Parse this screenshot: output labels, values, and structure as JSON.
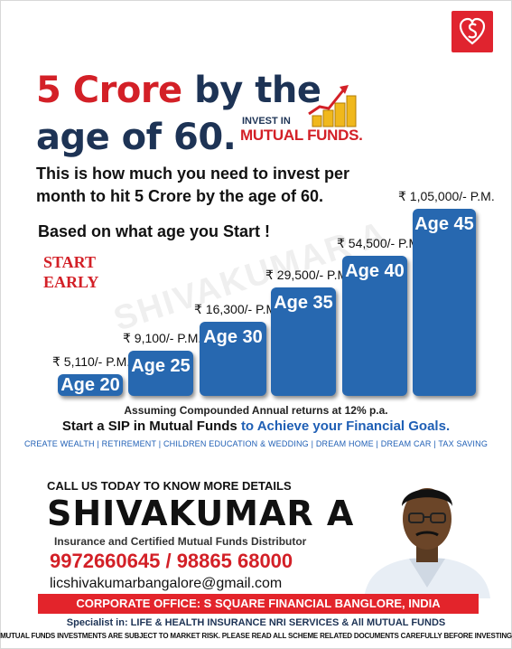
{
  "logo": {
    "icon": "hearts-s-logo-icon",
    "color": "#e0242f"
  },
  "headline": {
    "part1_red": "5 Crore",
    "part1_rest": " by the",
    "part2": "age of 60."
  },
  "invest_badge": {
    "line1": "INVEST IN",
    "line2": "MUTUAL FUNDS.",
    "icon": "coins-growth-icon"
  },
  "subtitle": {
    "line1": "This is how much you need to invest per",
    "line2": "month to hit 5 Crore by the age of 60.",
    "line3": "Based on what age you Start !"
  },
  "start_early": {
    "line1": "START",
    "line2": "EARLY"
  },
  "watermark": "SHIVAKUMAR A",
  "chart_data": {
    "type": "bar",
    "categories": [
      "Age 20",
      "Age 25",
      "Age 30",
      "Age 35",
      "Age 40",
      "Age 45"
    ],
    "values": [
      5110,
      9100,
      16300,
      29500,
      54500,
      105000
    ],
    "value_labels": [
      "₹ 5,110/- P.M.",
      "₹ 9,100/- P.M.",
      "₹ 16,300/- P.M.",
      "₹ 29,500/- P.M.",
      "₹ 54,500/- P.M.",
      "₹ 1,05,000/- P.M."
    ],
    "bar_color": "#2768b0"
  },
  "note": "Assuming Compounded  Annual returns at 12% p.a.",
  "cta": {
    "black": "Start a SIP in Mutual Funds ",
    "blue": "to Achieve your Financial Goals."
  },
  "tags": "CREATE WEALTH | RETIREMENT | CHILDREN EDUCATION & WEDDING | DREAM HOME | DREAM CAR | TAX SAVING",
  "contact": {
    "call": "CALL US TODAY TO KNOW MORE DETAILS",
    "name": "SHIVAKUMAR A",
    "role": "Insurance and Certified Mutual Funds Distributor",
    "phones": "9972660645 / 98865 68000",
    "email": "licshivakumarbangalore@gmail.com"
  },
  "office": "CORPORATE OFFICE: S SQUARE FINANCIAL BANGLORE, INDIA",
  "specialist": "Specialist in: LIFE & HEALTH INSURANCE NRI SERVICES  & All MUTUAL FUNDS",
  "disclaimer": "MUTUAL FUNDS INVESTMENTS ARE SUBJECT TO MARKET RISK. PLEASE READ ALL SCHEME RELATED DOCUMENTS CAREFULLY BEFORE INVESTING"
}
